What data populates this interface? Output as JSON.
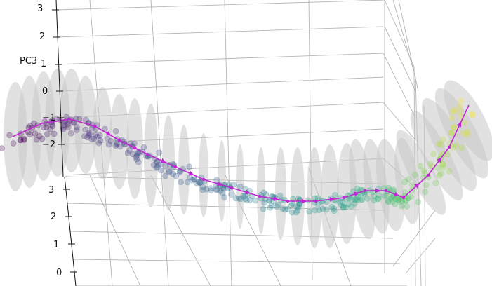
{
  "chart_data": {
    "type": "scatter",
    "projection": "3d",
    "title": "",
    "zlabel": "PC3",
    "z_ticks": [
      "3",
      "2",
      "1",
      "0",
      "−1",
      "−2"
    ],
    "y_ticks": [
      "3",
      "2",
      "1",
      "0"
    ],
    "grid": true,
    "colormap": "viridis",
    "trajectory_color": "#c026d3",
    "ellipse_color": "#bdbdbd",
    "trajectory": {
      "name": "",
      "t": [
        0.0,
        0.06,
        0.12,
        0.18,
        0.24,
        0.3,
        0.36,
        0.42,
        0.48,
        0.54,
        0.6,
        0.66,
        0.72,
        0.78,
        0.84,
        0.9,
        0.95,
        1.0
      ],
      "pc3": [
        -1.8,
        -1.1,
        -1.1,
        -1.6,
        -2.0,
        -2.5,
        -3.0,
        -3.5,
        -3.9,
        -4.2,
        -4.3,
        -4.3,
        -4.1,
        -3.9,
        -3.9,
        -3.4,
        -2.2,
        -0.6
      ]
    }
  }
}
